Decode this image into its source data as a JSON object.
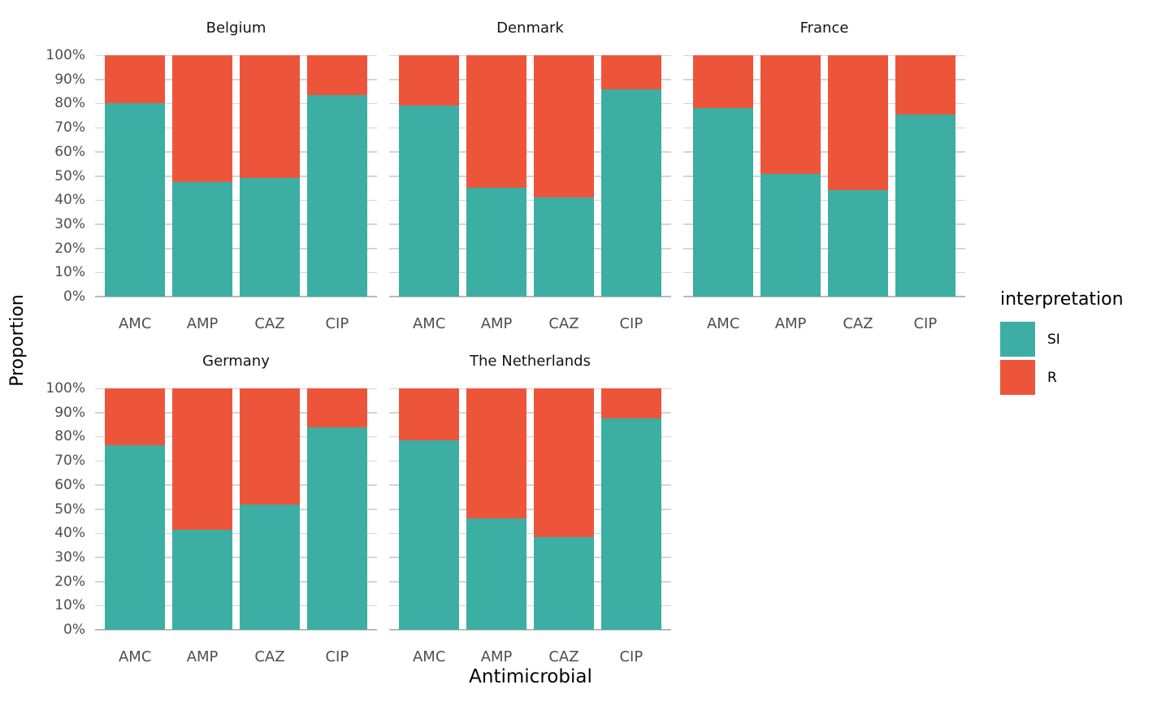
{
  "chart_data": {
    "type": "bar",
    "stacked": true,
    "percent_scale": true,
    "xlabel": "Antimicrobial",
    "ylabel": "Proportion",
    "categories": [
      "AMC",
      "AMP",
      "CAZ",
      "CIP"
    ],
    "y_ticks": [
      "100%",
      "90%",
      "80%",
      "70%",
      "60%",
      "50%",
      "40%",
      "30%",
      "20%",
      "10%",
      "0%"
    ],
    "ylim": [
      0,
      100
    ],
    "grid": "horizontal-10pct",
    "colors": {
      "SI": "#3CAEA3",
      "R": "#ED553B"
    },
    "legend": {
      "title": "interpretation",
      "position": "right",
      "items": [
        {
          "label": "SI",
          "color": "#3CAEA3"
        },
        {
          "label": "R",
          "color": "#ED553B"
        }
      ]
    },
    "facets": [
      {
        "title": "Belgium",
        "series": [
          {
            "name": "SI",
            "values": [
              80,
              47.5,
              49,
              83.5
            ]
          },
          {
            "name": "R",
            "values": [
              20,
              52.5,
              51,
              16.5
            ]
          }
        ]
      },
      {
        "title": "Denmark",
        "series": [
          {
            "name": "SI",
            "values": [
              79,
              45,
              41,
              86
            ]
          },
          {
            "name": "R",
            "values": [
              21,
              55,
              59,
              14
            ]
          }
        ]
      },
      {
        "title": "France",
        "series": [
          {
            "name": "SI",
            "values": [
              78,
              51,
              44,
              75.5
            ]
          },
          {
            "name": "R",
            "values": [
              22,
              49,
              56,
              24.5
            ]
          }
        ]
      },
      {
        "title": "Germany",
        "series": [
          {
            "name": "SI",
            "values": [
              76.5,
              41.5,
              52,
              84
            ]
          },
          {
            "name": "R",
            "values": [
              23.5,
              58.5,
              48,
              16
            ]
          }
        ]
      },
      {
        "title": "The Netherlands",
        "series": [
          {
            "name": "SI",
            "values": [
              78.5,
              46,
              38.5,
              87.5
            ]
          },
          {
            "name": "R",
            "values": [
              21.5,
              54,
              61.5,
              12.5
            ]
          }
        ]
      }
    ]
  }
}
